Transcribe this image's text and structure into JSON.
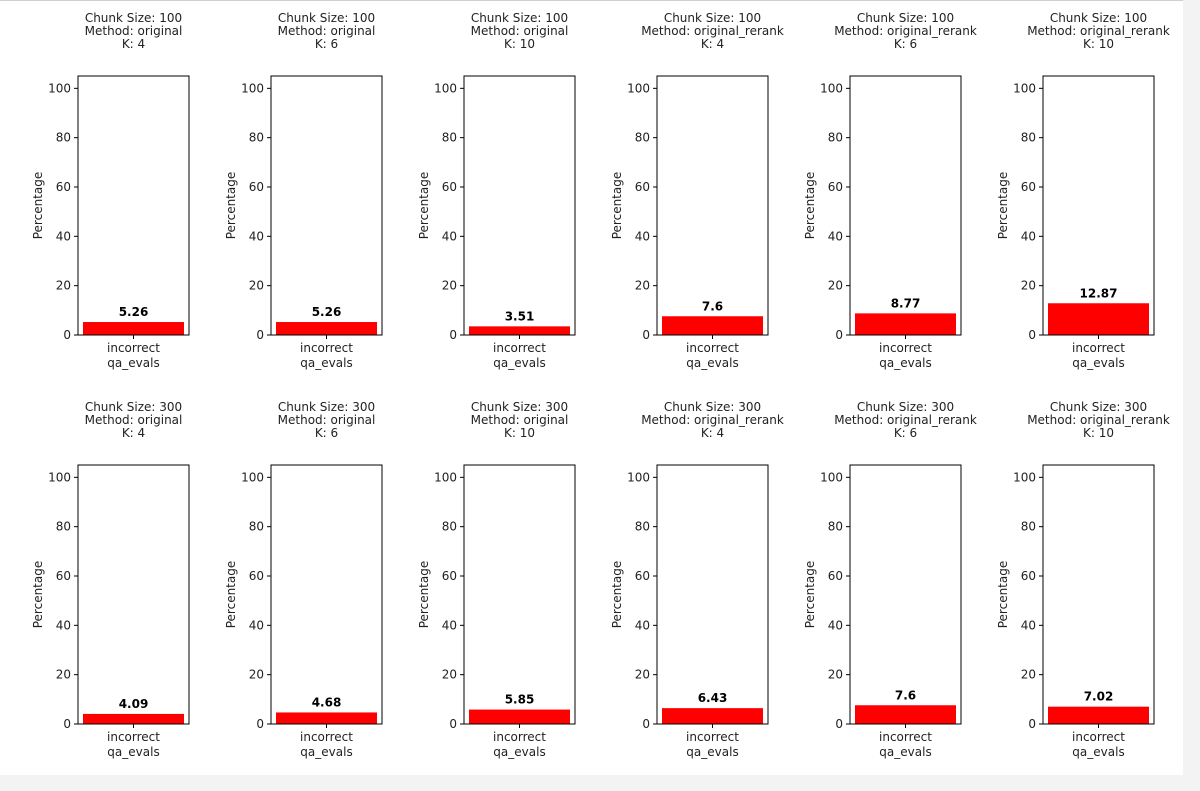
{
  "colors": {
    "bar": "#ff0000",
    "axis": "#000000",
    "text": "#222222",
    "background": "#ffffff"
  },
  "chart_data": [
    {
      "type": "bar",
      "title_lines": [
        "Chunk Size: 100",
        "Method: original",
        "K: 4"
      ],
      "categories": [
        "incorrect"
      ],
      "values": [
        5.26
      ],
      "value_labels": [
        "5.26"
      ],
      "xlabel": "qa_evals",
      "ylabel": "Percentage",
      "ylim": [
        0,
        105
      ],
      "yticks": [
        "0",
        "20",
        "40",
        "60",
        "80",
        "100"
      ]
    },
    {
      "type": "bar",
      "title_lines": [
        "Chunk Size: 100",
        "Method: original",
        "K: 6"
      ],
      "categories": [
        "incorrect"
      ],
      "values": [
        5.26
      ],
      "value_labels": [
        "5.26"
      ],
      "xlabel": "qa_evals",
      "ylabel": "Percentage",
      "ylim": [
        0,
        105
      ],
      "yticks": [
        "0",
        "20",
        "40",
        "60",
        "80",
        "100"
      ]
    },
    {
      "type": "bar",
      "title_lines": [
        "Chunk Size: 100",
        "Method: original",
        "K: 10"
      ],
      "categories": [
        "incorrect"
      ],
      "values": [
        3.51
      ],
      "value_labels": [
        "3.51"
      ],
      "xlabel": "qa_evals",
      "ylabel": "Percentage",
      "ylim": [
        0,
        105
      ],
      "yticks": [
        "0",
        "20",
        "40",
        "60",
        "80",
        "100"
      ]
    },
    {
      "type": "bar",
      "title_lines": [
        "Chunk Size: 100",
        "Method: original_rerank",
        "K: 4"
      ],
      "categories": [
        "incorrect"
      ],
      "values": [
        7.6
      ],
      "value_labels": [
        "7.6"
      ],
      "xlabel": "qa_evals",
      "ylabel": "Percentage",
      "ylim": [
        0,
        105
      ],
      "yticks": [
        "0",
        "20",
        "40",
        "60",
        "80",
        "100"
      ]
    },
    {
      "type": "bar",
      "title_lines": [
        "Chunk Size: 100",
        "Method: original_rerank",
        "K: 6"
      ],
      "categories": [
        "incorrect"
      ],
      "values": [
        8.77
      ],
      "value_labels": [
        "8.77"
      ],
      "xlabel": "qa_evals",
      "ylabel": "Percentage",
      "ylim": [
        0,
        105
      ],
      "yticks": [
        "0",
        "20",
        "40",
        "60",
        "80",
        "100"
      ]
    },
    {
      "type": "bar",
      "title_lines": [
        "Chunk Size: 100",
        "Method: original_rerank",
        "K: 10"
      ],
      "categories": [
        "incorrect"
      ],
      "values": [
        12.87
      ],
      "value_labels": [
        "12.87"
      ],
      "xlabel": "qa_evals",
      "ylabel": "Percentage",
      "ylim": [
        0,
        105
      ],
      "yticks": [
        "0",
        "20",
        "40",
        "60",
        "80",
        "100"
      ]
    },
    {
      "type": "bar",
      "title_lines": [
        "Chunk Size: 300",
        "Method: original",
        "K: 4"
      ],
      "categories": [
        "incorrect"
      ],
      "values": [
        4.09
      ],
      "value_labels": [
        "4.09"
      ],
      "xlabel": "qa_evals",
      "ylabel": "Percentage",
      "ylim": [
        0,
        105
      ],
      "yticks": [
        "0",
        "20",
        "40",
        "60",
        "80",
        "100"
      ]
    },
    {
      "type": "bar",
      "title_lines": [
        "Chunk Size: 300",
        "Method: original",
        "K: 6"
      ],
      "categories": [
        "incorrect"
      ],
      "values": [
        4.68
      ],
      "value_labels": [
        "4.68"
      ],
      "xlabel": "qa_evals",
      "ylabel": "Percentage",
      "ylim": [
        0,
        105
      ],
      "yticks": [
        "0",
        "20",
        "40",
        "60",
        "80",
        "100"
      ]
    },
    {
      "type": "bar",
      "title_lines": [
        "Chunk Size: 300",
        "Method: original",
        "K: 10"
      ],
      "categories": [
        "incorrect"
      ],
      "values": [
        5.85
      ],
      "value_labels": [
        "5.85"
      ],
      "xlabel": "qa_evals",
      "ylabel": "Percentage",
      "ylim": [
        0,
        105
      ],
      "yticks": [
        "0",
        "20",
        "40",
        "60",
        "80",
        "100"
      ]
    },
    {
      "type": "bar",
      "title_lines": [
        "Chunk Size: 300",
        "Method: original_rerank",
        "K: 4"
      ],
      "categories": [
        "incorrect"
      ],
      "values": [
        6.43
      ],
      "value_labels": [
        "6.43"
      ],
      "xlabel": "qa_evals",
      "ylabel": "Percentage",
      "ylim": [
        0,
        105
      ],
      "yticks": [
        "0",
        "20",
        "40",
        "60",
        "80",
        "100"
      ]
    },
    {
      "type": "bar",
      "title_lines": [
        "Chunk Size: 300",
        "Method: original_rerank",
        "K: 6"
      ],
      "categories": [
        "incorrect"
      ],
      "values": [
        7.6
      ],
      "value_labels": [
        "7.6"
      ],
      "xlabel": "qa_evals",
      "ylabel": "Percentage",
      "ylim": [
        0,
        105
      ],
      "yticks": [
        "0",
        "20",
        "40",
        "60",
        "80",
        "100"
      ]
    },
    {
      "type": "bar",
      "title_lines": [
        "Chunk Size: 300",
        "Method: original_rerank",
        "K: 10"
      ],
      "categories": [
        "incorrect"
      ],
      "values": [
        7.02
      ],
      "value_labels": [
        "7.02"
      ],
      "xlabel": "qa_evals",
      "ylabel": "Percentage",
      "ylim": [
        0,
        105
      ],
      "yticks": [
        "0",
        "20",
        "40",
        "60",
        "80",
        "100"
      ]
    }
  ]
}
